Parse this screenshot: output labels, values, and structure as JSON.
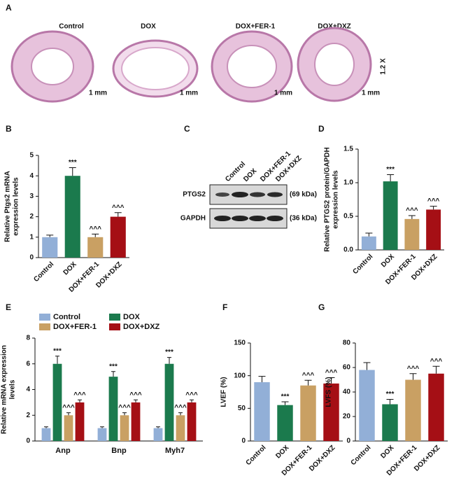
{
  "panel_a": {
    "label": "A",
    "groups": [
      "Control",
      "DOX",
      "DOX+FER-1",
      "DOX+DXZ"
    ],
    "scale_bars": [
      "1 mm",
      "1 mm",
      "1 mm",
      "1 mm"
    ],
    "magnification": "1.2 X"
  },
  "panel_c": {
    "label": "C",
    "lanes": [
      "Control",
      "DOX",
      "DOX+FER-1",
      "DOX+DXZ"
    ],
    "rows": [
      {
        "name": "PTGS2",
        "size": "(69 kDa)"
      },
      {
        "name": "GAPDH",
        "size": "(36 kDa)"
      }
    ]
  },
  "chart_data": [
    {
      "type": "bar",
      "panel": "B",
      "ylabel": [
        "Relative Ptgs2 mRNA",
        "expression levels"
      ],
      "categories": [
        "Control",
        "DOX",
        "DOX+FER-1",
        "DOX+DXZ"
      ],
      "values": [
        1,
        4,
        1,
        2
      ],
      "errors": [
        0.1,
        0.4,
        0.15,
        0.2
      ],
      "annotations": [
        null,
        "***",
        "^^^",
        "^^^"
      ],
      "colors": [
        "#92afd7",
        "#1b7a4d",
        "#c9a063",
        "#a50f15"
      ],
      "ylim": [
        0,
        5
      ],
      "yticks": [
        0,
        1,
        2,
        3,
        4,
        5
      ]
    },
    {
      "type": "bar",
      "panel": "D",
      "ylabel": [
        "Relative PTGS2 protein/GAPDH",
        "expression levels"
      ],
      "categories": [
        "Control",
        "DOX",
        "DOX+FER-1",
        "DOX+DXZ"
      ],
      "values": [
        0.2,
        1.02,
        0.46,
        0.6
      ],
      "errors": [
        0.05,
        0.1,
        0.05,
        0.05
      ],
      "annotations": [
        null,
        "***",
        "^^^",
        "^^^"
      ],
      "colors": [
        "#92afd7",
        "#1b7a4d",
        "#c9a063",
        "#a50f15"
      ],
      "ylim": [
        0,
        1.5
      ],
      "yticks": [
        {
          "value": 0,
          "label": "0.0"
        },
        0.5,
        {
          "value": 1,
          "label": "1.0"
        },
        1.5
      ]
    },
    {
      "type": "grouped_bar",
      "panel": "E",
      "ylabel": [
        "Relative mRNA expression",
        "levels"
      ],
      "categories": [
        "Anp",
        "Bnp",
        "Myh7"
      ],
      "series": [
        {
          "name": "Control",
          "color": "#92afd7",
          "values": [
            1,
            1,
            1
          ],
          "errors": [
            0.1,
            0.1,
            0.1
          ],
          "annotation": null
        },
        {
          "name": "DOX",
          "color": "#1b7a4d",
          "values": [
            6,
            5,
            6
          ],
          "errors": [
            0.6,
            0.4,
            0.5
          ],
          "annotation": "***"
        },
        {
          "name": "DOX+FER-1",
          "color": "#c9a063",
          "values": [
            2,
            2,
            2
          ],
          "errors": [
            0.2,
            0.2,
            0.2
          ],
          "annotation": "^^^"
        },
        {
          "name": "DOX+DXZ",
          "color": "#a50f15",
          "values": [
            3,
            3,
            3
          ],
          "errors": [
            0.2,
            0.2,
            0.2
          ],
          "annotation": "^^^"
        }
      ],
      "ylim": [
        0,
        8
      ],
      "yticks": [
        0,
        2,
        4,
        6,
        8
      ]
    },
    {
      "type": "bar",
      "panel": "F",
      "ylabel": [
        "LVEF (%)"
      ],
      "categories": [
        "Control",
        "DOX",
        "DOX+FER-1",
        "DOX+DXZ"
      ],
      "values": [
        90,
        55,
        85,
        88
      ],
      "errors": [
        9,
        5,
        8,
        9
      ],
      "annotations": [
        null,
        "***",
        "^^^",
        "^^^"
      ],
      "colors": [
        "#92afd7",
        "#1b7a4d",
        "#c9a063",
        "#a50f15"
      ],
      "ylim": [
        0,
        150
      ],
      "yticks": [
        0,
        50,
        100,
        150
      ]
    },
    {
      "type": "bar",
      "panel": "G",
      "ylabel": [
        "LVFS (%)"
      ],
      "categories": [
        "Control",
        "DOX",
        "DOX+FER-1",
        "DOX+DXZ"
      ],
      "values": [
        58,
        30,
        50,
        55
      ],
      "errors": [
        6,
        4,
        5,
        6
      ],
      "annotations": [
        null,
        "***",
        "^^^",
        "^^^"
      ],
      "colors": [
        "#92afd7",
        "#1b7a4d",
        "#c9a063",
        "#a50f15"
      ],
      "ylim": [
        0,
        80
      ],
      "yticks": [
        0,
        20,
        40,
        60,
        80
      ]
    }
  ]
}
